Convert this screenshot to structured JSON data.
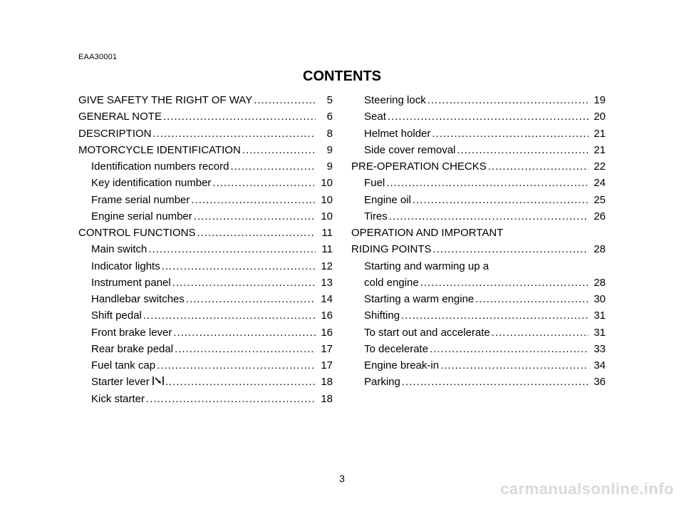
{
  "doccode": "EAA30001",
  "title": "CONTENTS",
  "page_number": "3",
  "watermark": "carmanualsonline.info",
  "left_col": [
    {
      "label": "GIVE SAFETY THE RIGHT OF WAY",
      "page": "5",
      "indent": false
    },
    {
      "label": "GENERAL NOTE",
      "page": "6",
      "indent": false
    },
    {
      "label": "DESCRIPTION",
      "page": "8",
      "indent": false
    },
    {
      "label": "MOTORCYCLE IDENTIFICATION",
      "page": "9",
      "indent": false
    },
    {
      "label": "Identification numbers record",
      "page": "9",
      "indent": true
    },
    {
      "label": "Key identification number",
      "page": "10",
      "indent": true
    },
    {
      "label": "Frame serial number",
      "page": "10",
      "indent": true
    },
    {
      "label": "Engine serial number",
      "page": "10",
      "indent": true
    },
    {
      "label": "CONTROL FUNCTIONS",
      "page": "11",
      "indent": false
    },
    {
      "label": "Main switch",
      "page": "11",
      "indent": true
    },
    {
      "label": "Indicator lights",
      "page": "12",
      "indent": true
    },
    {
      "label": "Instrument panel",
      "page": "13",
      "indent": true
    },
    {
      "label": "Handlebar switches",
      "page": "14",
      "indent": true
    },
    {
      "label": "Shift pedal",
      "page": "16",
      "indent": true
    },
    {
      "label": "Front brake lever",
      "page": "16",
      "indent": true
    },
    {
      "label": "Rear brake pedal",
      "page": "17",
      "indent": true
    },
    {
      "label": "Fuel tank cap",
      "page": "17",
      "indent": true
    },
    {
      "label": "Starter lever ",
      "page": "18",
      "indent": true,
      "icon": "starter-lever-icon"
    },
    {
      "label": "Kick starter",
      "page": "18",
      "indent": true
    }
  ],
  "right_col": [
    {
      "label": "Steering lock",
      "page": "19",
      "indent": true
    },
    {
      "label": "Seat",
      "page": "20",
      "indent": true
    },
    {
      "label": "Helmet holder",
      "page": "21",
      "indent": true
    },
    {
      "label": "Side cover removal",
      "page": "21",
      "indent": true
    },
    {
      "label": "PRE-OPERATION CHECKS",
      "page": "22",
      "indent": false
    },
    {
      "label": "Fuel",
      "page": "24",
      "indent": true
    },
    {
      "label": "Engine oil",
      "page": "25",
      "indent": true
    },
    {
      "label": "Tires",
      "page": "26",
      "indent": true
    },
    {
      "label": "OPERATION AND IMPORTANT",
      "page": "",
      "indent": false,
      "no_leader": true
    },
    {
      "label": "RIDING POINTS",
      "page": "28",
      "indent": false
    },
    {
      "label": "Starting and warming up a",
      "page": "",
      "indent": true,
      "no_leader": true
    },
    {
      "label": "cold engine",
      "page": "28",
      "indent": true
    },
    {
      "label": "Starting a warm engine",
      "page": "30",
      "indent": true
    },
    {
      "label": "Shifting",
      "page": "31",
      "indent": true
    },
    {
      "label": "To start out and accelerate",
      "page": "31",
      "indent": true
    },
    {
      "label": "To decelerate",
      "page": "33",
      "indent": true
    },
    {
      "label": "Engine break-in",
      "page": "34",
      "indent": true
    },
    {
      "label": "Parking",
      "page": "36",
      "indent": true
    }
  ]
}
